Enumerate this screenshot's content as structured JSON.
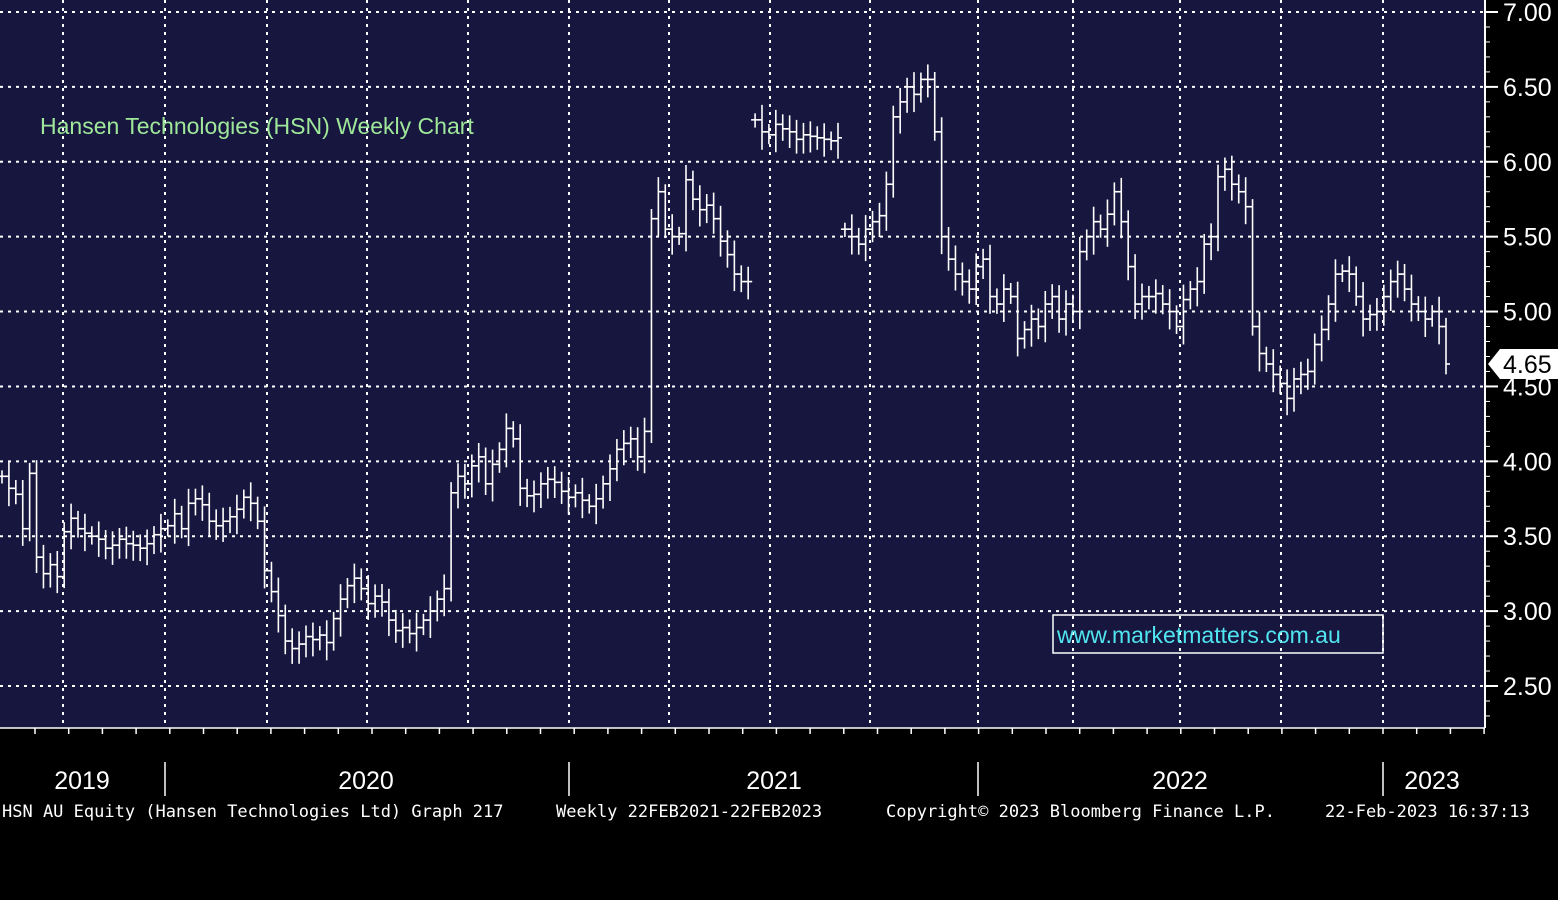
{
  "chart_data": {
    "type": "ohlc",
    "title": "Hansen Technologies (HSN) Weekly Chart",
    "watermark": "www.marketmatters.com.au",
    "last_price_label": "4.65",
    "y_ticks": [
      "7.00",
      "6.50",
      "6.00",
      "5.50",
      "5.00",
      "4.50",
      "4.00",
      "3.50",
      "3.00",
      "2.50"
    ],
    "ylim": [
      2.25,
      7.05
    ],
    "x_labels": [
      "2019",
      "2020",
      "2021",
      "2022",
      "2023"
    ],
    "grid": true,
    "colors": {
      "plot_bg": "#17163f",
      "grid": "#ffffff",
      "bars": "#ffffff",
      "title": "#9fe89a",
      "watermark": "#50e6f0",
      "footer_bg": "#000000"
    },
    "series": [
      {
        "values": [
          3.9,
          3.82,
          3.78,
          3.55,
          3.92,
          3.36,
          3.25,
          3.31,
          3.23,
          3.53,
          3.62,
          3.55,
          3.52,
          3.5,
          3.48,
          3.42,
          3.44,
          3.48,
          3.45,
          3.44,
          3.42,
          3.45,
          3.51,
          3.55,
          3.57,
          3.65,
          3.55,
          3.72,
          3.75,
          3.71,
          3.6,
          3.57,
          3.6,
          3.63,
          3.68,
          3.76,
          3.72,
          3.6,
          3.27,
          3.13,
          2.97,
          2.8,
          2.75,
          2.78,
          2.83,
          2.81,
          2.84,
          2.79,
          2.95,
          3.08,
          3.17,
          3.22,
          3.15,
          3.05,
          3.1,
          3.06,
          2.94,
          2.87,
          2.89,
          2.85,
          2.89,
          2.94,
          3.0,
          3.08,
          3.15,
          3.79,
          3.9,
          3.85,
          3.97,
          4.03,
          3.85,
          3.98,
          4.08,
          4.22,
          4.15,
          3.82,
          3.77,
          3.78,
          3.85,
          3.88,
          3.86,
          3.8,
          3.76,
          3.79,
          3.74,
          3.7,
          3.75,
          3.85,
          3.95,
          4.08,
          4.12,
          4.15,
          4.03,
          4.2,
          5.62,
          5.8,
          5.55,
          5.5,
          5.52,
          5.88,
          5.75,
          5.68,
          5.71,
          5.62,
          5.47,
          5.38,
          5.25,
          5.2,
          5.2,
          6.28,
          6.2,
          6.18,
          6.25,
          6.22,
          6.2,
          6.15,
          6.18,
          6.17,
          6.16,
          6.15,
          6.14,
          6.16,
          5.55,
          5.5,
          5.45,
          5.55,
          5.6,
          5.64,
          5.85,
          6.3,
          6.4,
          6.5,
          6.45,
          6.55,
          6.55,
          6.2,
          5.5,
          5.35,
          5.25,
          5.2,
          5.15,
          5.3,
          5.35,
          5.1,
          5.05,
          5.15,
          5.1,
          4.82,
          4.88,
          4.95,
          4.9,
          5.05,
          5.1,
          4.95,
          5.05,
          5.0,
          5.4,
          5.5,
          5.6,
          5.55,
          5.65,
          5.8,
          5.6,
          5.3,
          5.05,
          5.1,
          5.1,
          5.12,
          5.05,
          5.0,
          4.9,
          5.08,
          5.15,
          5.2,
          5.45,
          5.5,
          5.9,
          5.95,
          5.85,
          5.8,
          5.7,
          4.9,
          4.72,
          4.65,
          4.58,
          4.52,
          4.42,
          4.55,
          4.58,
          4.6,
          4.78,
          4.88,
          5.05,
          5.25,
          5.27,
          5.25,
          5.1,
          4.95,
          4.98,
          5.0,
          5.1,
          5.2,
          5.25,
          5.15,
          5.05,
          5.0,
          4.95,
          5.0,
          4.9,
          4.65
        ]
      }
    ]
  },
  "footer": {
    "left": "HSN AU Equity (Hansen Technologies Ltd) Graph 217",
    "period": "Weekly 22FEB2021-22FEB2023",
    "copyright": "Copyright© 2023 Bloomberg Finance L.P.",
    "timestamp": "22-Feb-2023 16:37:13"
  }
}
